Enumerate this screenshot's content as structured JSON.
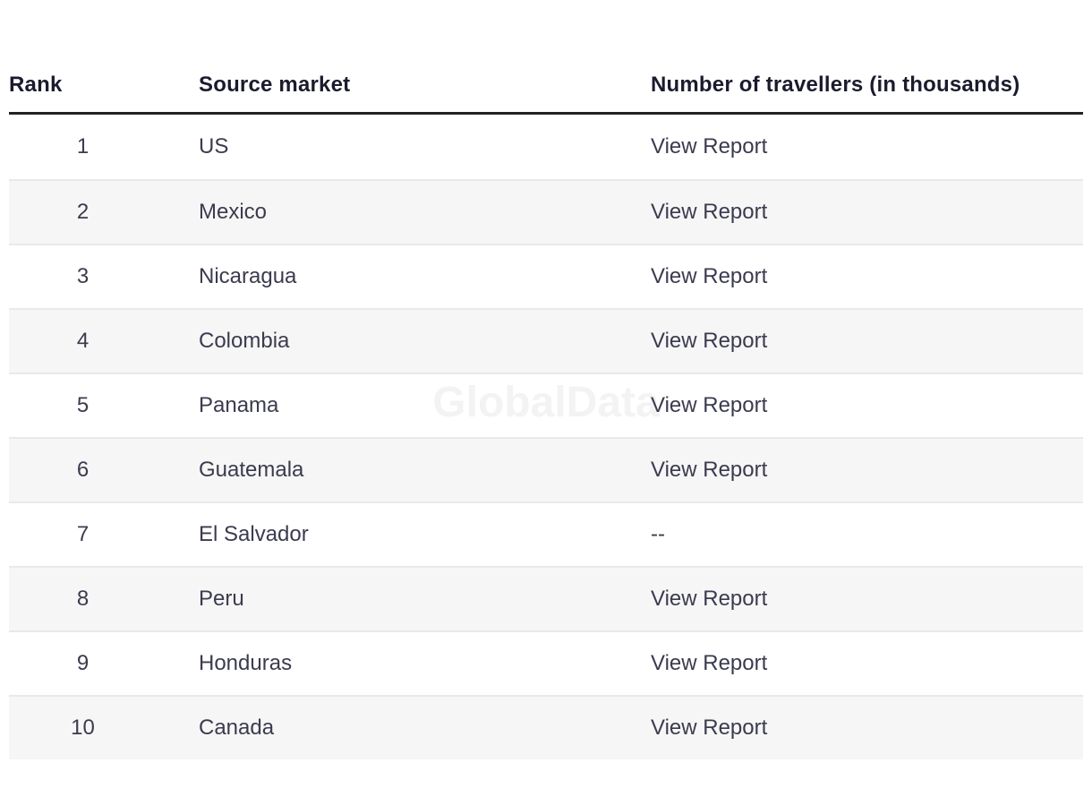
{
  "watermark": "GlobalData",
  "colors": {
    "stripe": "#f6f6f6",
    "row_border": "#e9e9e9",
    "header_border": "#222222",
    "header_text": "#1b1b2e",
    "body_text": "#3b3b4f",
    "watermark_text": "#f3f3f3"
  },
  "table": {
    "columns": [
      {
        "key": "rank",
        "label": "Rank"
      },
      {
        "key": "market",
        "label": "Source market"
      },
      {
        "key": "travellers",
        "label": "Number of travellers (in thousands)"
      }
    ],
    "no_data_marker": "--",
    "rows": [
      {
        "rank": "1",
        "market": "US",
        "travellers": "View Report"
      },
      {
        "rank": "2",
        "market": "Mexico",
        "travellers": "View Report"
      },
      {
        "rank": "3",
        "market": "Nicaragua",
        "travellers": "View Report"
      },
      {
        "rank": "4",
        "market": "Colombia",
        "travellers": "View Report"
      },
      {
        "rank": "5",
        "market": "Panama",
        "travellers": "View Report"
      },
      {
        "rank": "6",
        "market": "Guatemala",
        "travellers": "View Report"
      },
      {
        "rank": "7",
        "market": "El Salvador",
        "travellers": "--"
      },
      {
        "rank": "8",
        "market": "Peru",
        "travellers": "View Report"
      },
      {
        "rank": "9",
        "market": "Honduras",
        "travellers": "View Report"
      },
      {
        "rank": "10",
        "market": "Canada",
        "travellers": "View Report"
      }
    ]
  }
}
